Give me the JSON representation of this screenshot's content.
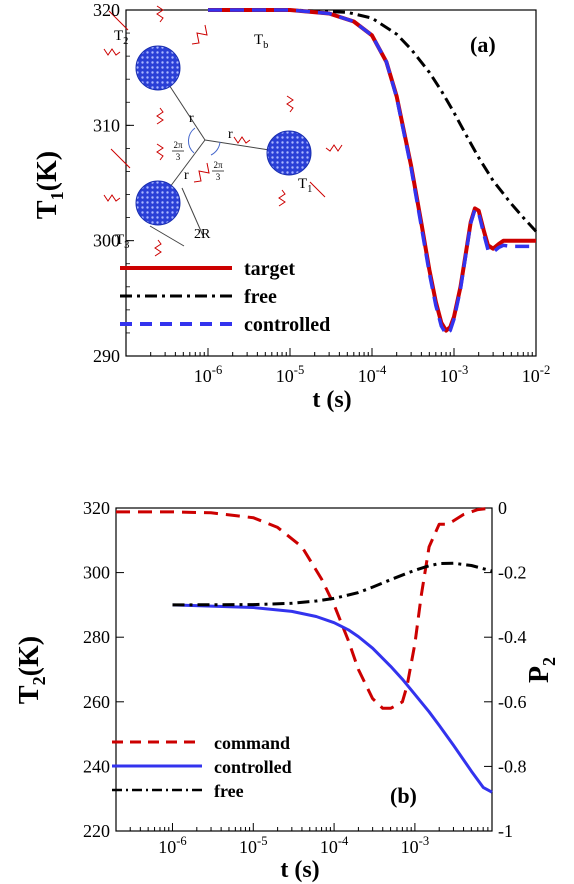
{
  "chart_data": [
    {
      "type": "line",
      "panel_label": "(a)",
      "xlabel": "t (s)",
      "ylabel": "T1(K)",
      "ylabel_main": "T",
      "ylabel_sub": "1",
      "ylabel_unit": "(K)",
      "x_scale": "log",
      "xlim": [
        1e-07,
        0.01
      ],
      "ylim": [
        290,
        320
      ],
      "x_ticks": [
        1e-06,
        1e-05,
        0.0001,
        0.001,
        0.01
      ],
      "x_tick_labels": [
        {
          "base": "10",
          "exp": "-6"
        },
        {
          "base": "10",
          "exp": "-5"
        },
        {
          "base": "10",
          "exp": "-4"
        },
        {
          "base": "10",
          "exp": "-3"
        },
        {
          "base": "10",
          "exp": "-2"
        }
      ],
      "y_ticks": [
        290,
        300,
        310,
        320
      ],
      "y_tick_labels": [
        "290",
        "300",
        "310",
        "320"
      ],
      "legend_position": "bottom-left",
      "series": [
        {
          "name": "target",
          "color": "#cc0000",
          "style": "solid",
          "x": [
            1e-06,
            1e-05,
            3e-05,
            6e-05,
            0.0001,
            0.00015,
            0.0002,
            0.0003,
            0.0004,
            0.0005,
            0.0006,
            0.0007,
            0.0008,
            0.0009,
            0.001,
            0.0012,
            0.0014,
            0.0016,
            0.0018,
            0.002,
            0.0023,
            0.0026,
            0.003,
            0.0035,
            0.004,
            0.005,
            0.007,
            0.01
          ],
          "y": [
            320,
            320,
            319.7,
            319.0,
            317.8,
            315.5,
            312.5,
            306.5,
            301.5,
            297.5,
            294.7,
            292.9,
            292.2,
            292.5,
            293.4,
            296.0,
            299.0,
            301.6,
            302.8,
            302.6,
            300.9,
            299.6,
            299.3,
            299.7,
            300.0,
            300.0,
            300.0,
            300.0
          ]
        },
        {
          "name": "free",
          "color": "#000000",
          "style": "dashdot",
          "x": [
            1e-06,
            1e-05,
            5e-05,
            0.0001,
            0.0002,
            0.0003,
            0.0005,
            0.0007,
            0.001,
            0.0015,
            0.002,
            0.003,
            0.005,
            0.007,
            0.01
          ],
          "y": [
            320,
            320,
            319.8,
            319.3,
            317.9,
            316.6,
            314.6,
            313.0,
            311.1,
            308.8,
            307.2,
            305.2,
            303.2,
            302.0,
            300.8
          ]
        },
        {
          "name": "controlled",
          "color": "#3333ee",
          "style": "dashed",
          "x": [
            1e-06,
            1e-05,
            3e-05,
            6e-05,
            0.0001,
            0.00015,
            0.0002,
            0.0003,
            0.0004,
            0.0005,
            0.0006,
            0.0007,
            0.0008,
            0.0009,
            0.001,
            0.0012,
            0.0014,
            0.0016,
            0.0018,
            0.002,
            0.0023,
            0.0026,
            0.003,
            0.0035,
            0.004,
            0.005,
            0.007,
            0.01
          ],
          "y": [
            320,
            320,
            319.7,
            319.0,
            317.8,
            315.5,
            312.4,
            306.3,
            301.2,
            297.2,
            294.4,
            292.6,
            291.9,
            292.2,
            293.2,
            295.8,
            298.9,
            301.5,
            302.7,
            302.4,
            300.6,
            299.2,
            299.0,
            299.4,
            299.6,
            299.5,
            299.5,
            299.5
          ]
        }
      ],
      "inset": {
        "labels": {
          "T1": {
            "main": "T",
            "sub": "1"
          },
          "T2": {
            "main": "T",
            "sub": "2"
          },
          "T3": {
            "main": "T",
            "sub": "3"
          },
          "Tb": {
            "main": "T",
            "sub": "b"
          },
          "r": "r",
          "two_r": "2R",
          "angle": {
            "num": "2π",
            "den": "3"
          }
        }
      }
    },
    {
      "type": "line",
      "panel_label": "(b)",
      "xlabel": "t (s)",
      "ylabel_left": "T2(K)",
      "ylabel_left_main": "T",
      "ylabel_left_sub": "2",
      "ylabel_left_unit": "(K)",
      "ylabel_right": "P2",
      "ylabel_right_main": "P",
      "ylabel_right_sub": "2",
      "x_scale": "log",
      "xlim": [
        2e-07,
        0.009
      ],
      "ylim_left": [
        220,
        320
      ],
      "ylim_right": [
        -1,
        0
      ],
      "x_ticks": [
        1e-06,
        1e-05,
        0.0001,
        0.001
      ],
      "x_tick_labels": [
        {
          "base": "10",
          "exp": "-6"
        },
        {
          "base": "10",
          "exp": "-5"
        },
        {
          "base": "10",
          "exp": "-4"
        },
        {
          "base": "10",
          "exp": "-3"
        }
      ],
      "y_ticks_left": [
        220,
        240,
        260,
        280,
        300,
        320
      ],
      "y_tick_labels_left": [
        "220",
        "240",
        "260",
        "280",
        "300",
        "320"
      ],
      "y_ticks_right": [
        -1,
        -0.8,
        -0.6,
        -0.4,
        -0.2,
        0
      ],
      "y_tick_labels_right": [
        "-1",
        "-0.8",
        "-0.6",
        "-0.4",
        "-0.2",
        "0"
      ],
      "legend_position": "bottom-left",
      "series": [
        {
          "name": "command",
          "color": "#cc0000",
          "style": "dashed",
          "axis": "right",
          "x": [
            2e-07,
            1e-06,
            3e-06,
            1e-05,
            2e-05,
            4e-05,
            7e-05,
            0.0001,
            0.00015,
            0.0002,
            0.0003,
            0.0004,
            0.0005,
            0.0006,
            0.0007,
            0.0008,
            0.001,
            0.0012,
            0.0015,
            0.002,
            0.0025,
            0.003,
            0.004,
            0.006,
            0.009
          ],
          "y": [
            -0.012,
            -0.012,
            -0.015,
            -0.03,
            -0.06,
            -0.12,
            -0.22,
            -0.3,
            -0.41,
            -0.5,
            -0.59,
            -0.62,
            -0.62,
            -0.61,
            -0.6,
            -0.55,
            -0.42,
            -0.27,
            -0.12,
            -0.05,
            -0.05,
            -0.04,
            -0.02,
            -0.005,
            0.0
          ]
        },
        {
          "name": "controlled",
          "color": "#3333ee",
          "style": "solid",
          "axis": "left",
          "x": [
            1e-06,
            1e-05,
            3e-05,
            6e-05,
            0.0001,
            0.00015,
            0.0002,
            0.0003,
            0.0005,
            0.0007,
            0.001,
            0.0015,
            0.002,
            0.003,
            0.005,
            0.007,
            0.009
          ],
          "y": [
            290,
            289.2,
            288.0,
            286.4,
            284.5,
            282.3,
            280.2,
            276.6,
            271.0,
            267.0,
            262.3,
            256.9,
            252.7,
            246.6,
            238.5,
            233.5,
            232.0
          ]
        },
        {
          "name": "free",
          "color": "#000000",
          "style": "dashdot",
          "axis": "left",
          "x": [
            1e-06,
            1e-05,
            3e-05,
            6e-05,
            0.0001,
            0.0002,
            0.0003,
            0.0005,
            0.0008,
            0.001,
            0.0015,
            0.002,
            0.003,
            0.005,
            0.009
          ],
          "y": [
            290,
            290.1,
            290.5,
            291.2,
            292.0,
            293.8,
            295.5,
            297.8,
            299.8,
            300.7,
            302.1,
            302.8,
            302.9,
            302.2,
            300.5
          ]
        }
      ]
    }
  ]
}
